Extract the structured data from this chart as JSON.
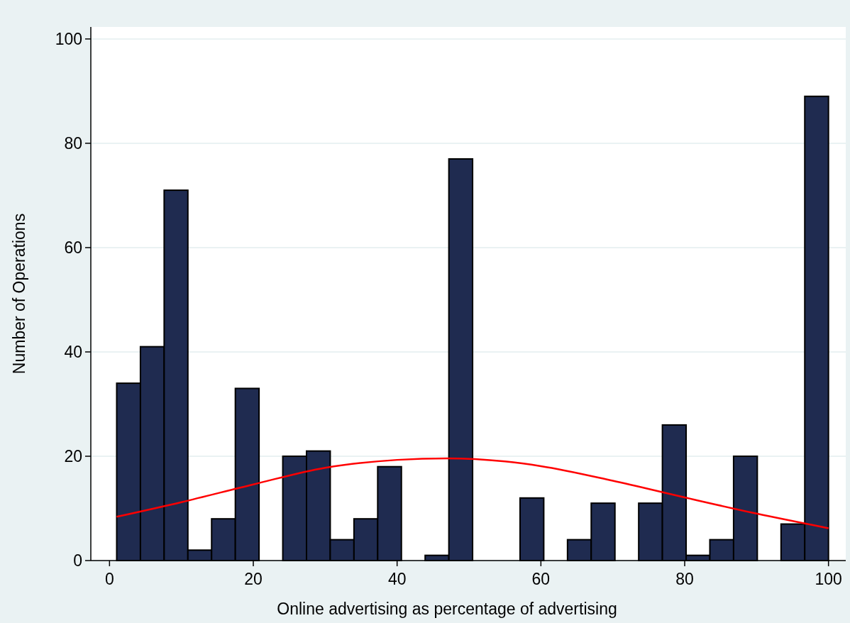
{
  "chart_data": {
    "type": "histogram",
    "xlabel": "Online advertising as percentage of advertising",
    "ylabel": "Number of Operations",
    "bins": [
      1,
      4.3,
      7.6,
      10.9,
      14.2,
      17.5,
      20.8,
      24.1,
      27.4,
      30.7,
      34,
      37.3,
      40.6,
      43.9,
      47.2,
      50.5,
      53.8,
      57.1,
      60.4,
      63.7,
      67,
      70.3,
      73.6,
      76.9,
      80.2,
      83.5,
      86.8,
      90.1,
      93.4,
      96.7,
      100
    ],
    "values": [
      34,
      41,
      71,
      2,
      8,
      33,
      0,
      20,
      21,
      4,
      8,
      18,
      0,
      1,
      77,
      0,
      0,
      12,
      0,
      4,
      11,
      0,
      11,
      26,
      1,
      4,
      20,
      0,
      7,
      89
    ],
    "color": "#1f2b50",
    "series": [
      {
        "type": "line",
        "color": "#ff0000",
        "x": [
          1,
          10,
          20,
          30,
          40,
          47,
          55,
          60,
          70,
          80,
          90,
          100
        ],
        "values": [
          8.4,
          11.2,
          14.6,
          17.8,
          19.3,
          19.6,
          19,
          18.1,
          15.3,
          12.1,
          9,
          6.2
        ]
      }
    ],
    "xlim": [
      -2.6,
      102.4
    ],
    "ylim": [
      0,
      102.3
    ],
    "xticks": [
      0,
      20,
      40,
      60,
      80,
      100
    ],
    "yticks": [
      0,
      20,
      40,
      60,
      80,
      100
    ],
    "grid": "y"
  }
}
